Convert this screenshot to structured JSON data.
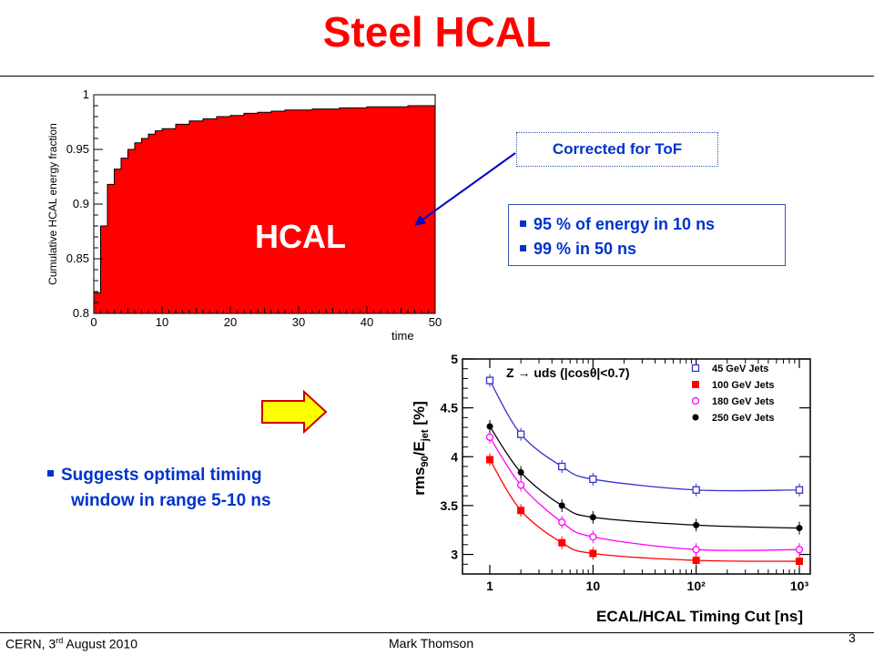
{
  "slide": {
    "title": "Steel HCAL",
    "footer_left_prefix": "CERN, 3",
    "footer_left_sup": "rd",
    "footer_left_suffix": " August 2010",
    "footer_center": "Mark Thomson",
    "page_number": "3"
  },
  "annotations": {
    "corrected": "Corrected for ToF",
    "bullets": [
      "95 % of energy in 10 ns",
      "99 % in 50 ns"
    ],
    "suggest_line1": "Suggests optimal timing",
    "suggest_line2": "window in range 5-10 ns"
  },
  "colors": {
    "title": "#ff0000",
    "annotation_text": "#0033cc",
    "histogram_fill": "#ff0000",
    "arrow_fill": "#ffff00",
    "arrow_stroke": "#cc0000"
  },
  "chart_data": [
    {
      "type": "area",
      "inner_label": "HCAL",
      "xlabel": "time",
      "ylabel": "Cumulative HCAL energy fraction",
      "xlim": [
        0,
        50
      ],
      "ylim": [
        0.8,
        1.0
      ],
      "x_ticks": [
        "0",
        "10",
        "20",
        "30",
        "40",
        "50"
      ],
      "y_ticks": [
        "0.8",
        "0.85",
        "0.9",
        "0.95",
        "1"
      ],
      "x": [
        0,
        1,
        2,
        3,
        4,
        5,
        6,
        7,
        8,
        9,
        10,
        12,
        14,
        16,
        18,
        20,
        22,
        24,
        26,
        28,
        30,
        32,
        34,
        36,
        38,
        40,
        42,
        44,
        46,
        48,
        50
      ],
      "y": [
        0.819,
        0.88,
        0.918,
        0.932,
        0.942,
        0.95,
        0.956,
        0.96,
        0.964,
        0.967,
        0.969,
        0.973,
        0.976,
        0.978,
        0.98,
        0.981,
        0.983,
        0.984,
        0.985,
        0.986,
        0.986,
        0.987,
        0.987,
        0.988,
        0.988,
        0.989,
        0.989,
        0.989,
        0.99,
        0.99,
        0.99
      ]
    },
    {
      "type": "line",
      "title": "Z → uds (|cosθ|<0.7)",
      "xlabel": "ECAL/HCAL Timing Cut [ns]",
      "ylabel": "rms90/Ejet [%]",
      "xscale": "log",
      "xlim": [
        1,
        1000
      ],
      "ylim": [
        2.8,
        5.0
      ],
      "x_ticks": [
        "1",
        "10",
        "10²",
        "10³"
      ],
      "y_ticks": [
        "3",
        "3.5",
        "4",
        "4.5",
        "5"
      ],
      "x": [
        1,
        2,
        5,
        10,
        100,
        1000
      ],
      "legend_position": "top-right",
      "series": [
        {
          "name": "45 GeV Jets",
          "values": [
            4.78,
            4.23,
            3.9,
            3.77,
            3.66,
            3.66
          ],
          "color": "#3333cc",
          "marker": "open-square"
        },
        {
          "name": "100 GeV Jets",
          "values": [
            3.97,
            3.45,
            3.12,
            3.01,
            2.94,
            2.93
          ],
          "color": "#ff0000",
          "marker": "filled-square"
        },
        {
          "name": "180 GeV Jets",
          "values": [
            4.2,
            3.71,
            3.33,
            3.18,
            3.05,
            3.05
          ],
          "color": "#ff00ff",
          "marker": "open-circle"
        },
        {
          "name": "250 GeV Jets",
          "values": [
            4.31,
            3.84,
            3.5,
            3.38,
            3.3,
            3.27
          ],
          "color": "#000000",
          "marker": "filled-circle"
        }
      ]
    }
  ]
}
